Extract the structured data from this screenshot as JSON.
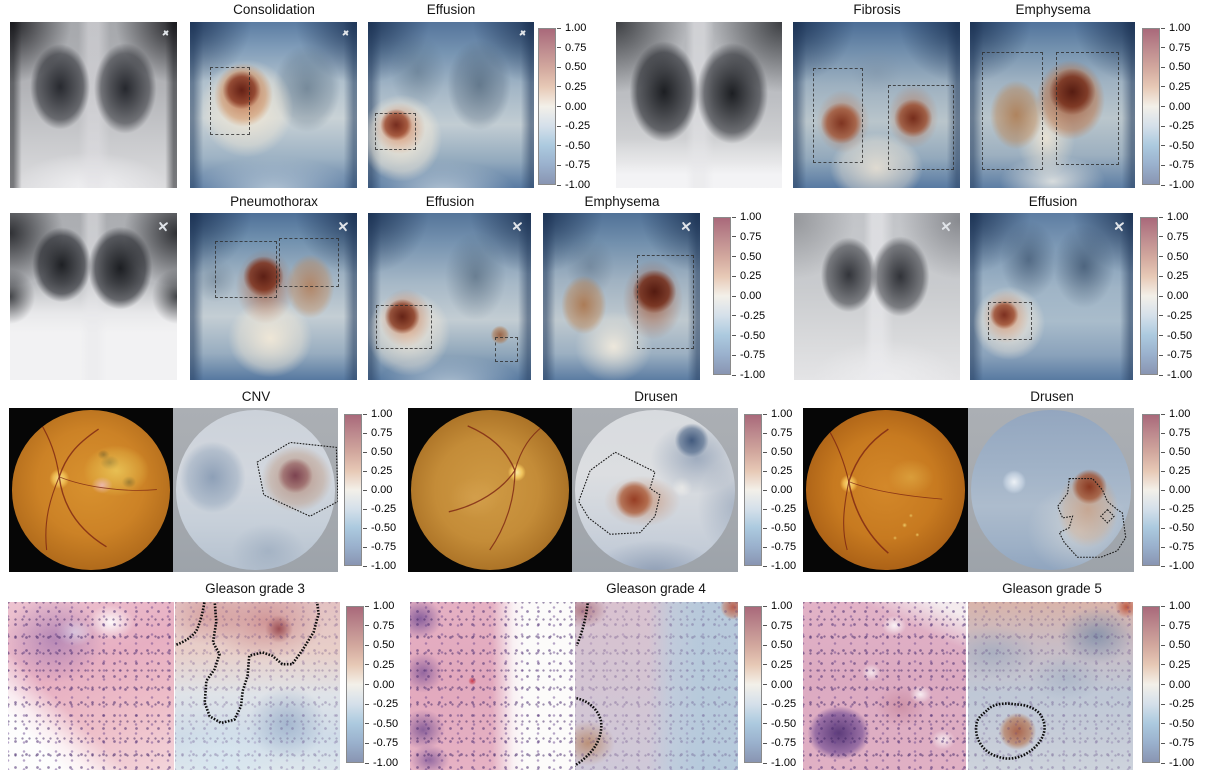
{
  "figure": {
    "background_color": "#ffffff",
    "rows": [
      {
        "modality": "chest x-ray",
        "groups": [
          {
            "panel_titles": [
              "Consolidation",
              "Effusion"
            ]
          },
          {
            "panel_titles": [
              "Fibrosis",
              "Emphysema"
            ]
          }
        ]
      },
      {
        "modality": "chest x-ray",
        "groups": [
          {
            "panel_titles": [
              "Pneumothorax",
              "Effusion",
              "Emphysema"
            ]
          },
          {
            "panel_titles": [
              "Effusion"
            ]
          }
        ]
      },
      {
        "modality": "retinal fundus",
        "groups": [
          {
            "panel_titles": [
              "CNV"
            ]
          },
          {
            "panel_titles": [
              "Drusen"
            ]
          },
          {
            "panel_titles": [
              "Drusen"
            ]
          }
        ]
      },
      {
        "modality": "histopathology",
        "groups": [
          {
            "panel_titles": [
              "Gleason grade 3"
            ]
          },
          {
            "panel_titles": [
              "Gleason grade 4"
            ]
          },
          {
            "panel_titles": [
              "Gleason grade 5"
            ]
          }
        ]
      }
    ],
    "colorbar": {
      "ticks": [
        "1.00",
        "0.75",
        "0.50",
        "0.25",
        "0.00",
        "-0.25",
        "-0.50",
        "-0.75",
        "-1.00"
      ],
      "range": [
        -1.0,
        1.0
      ],
      "max_color": "#a9697a",
      "mid_color": "#f3f0e9",
      "min_color": "#8995b2"
    }
  }
}
